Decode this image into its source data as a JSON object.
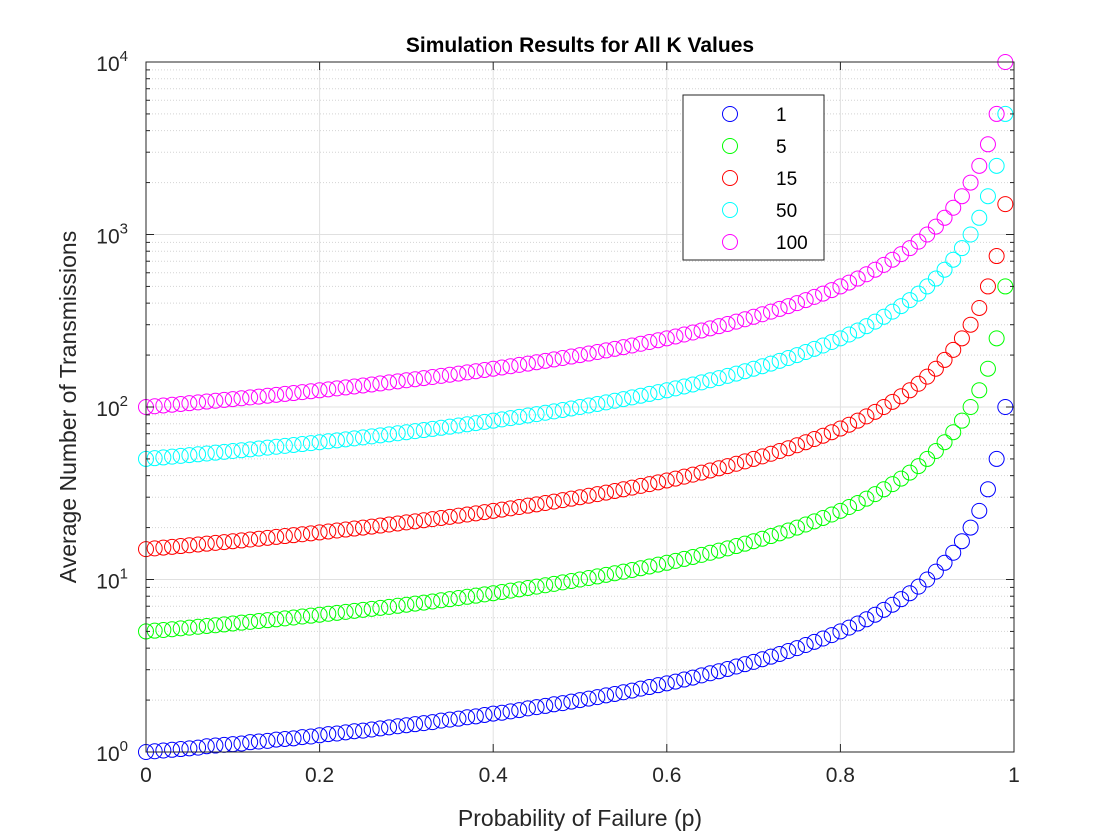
{
  "chart_data": {
    "type": "scatter",
    "title": "Simulation Results for All K Values",
    "xlabel": "Probability of Failure (p)",
    "ylabel": "Average Number of Transmissions",
    "xlim": [
      0,
      1
    ],
    "ylim": [
      1,
      10000
    ],
    "yscale": "log",
    "grid": true,
    "minor_grid": true,
    "legend_position": "top-right",
    "x_ticks": [
      "0",
      "0.2",
      "0.4",
      "0.6",
      "0.8",
      "1"
    ],
    "y_ticks": [
      {
        "base": "10",
        "exp": "0"
      },
      {
        "base": "10",
        "exp": "1"
      },
      {
        "base": "10",
        "exp": "2"
      },
      {
        "base": "10",
        "exp": "3"
      },
      {
        "base": "10",
        "exp": "4"
      }
    ],
    "x": [
      0,
      0.01,
      0.02,
      0.03,
      0.04,
      0.05,
      0.06,
      0.07,
      0.08,
      0.09,
      0.1,
      0.11,
      0.12,
      0.13,
      0.14,
      0.15,
      0.16,
      0.17,
      0.18,
      0.19,
      0.2,
      0.21,
      0.22,
      0.23,
      0.24,
      0.25,
      0.26,
      0.27,
      0.28,
      0.29,
      0.3,
      0.31,
      0.32,
      0.33,
      0.34,
      0.35,
      0.36,
      0.37,
      0.38,
      0.39,
      0.4,
      0.41,
      0.42,
      0.43,
      0.44,
      0.45,
      0.46,
      0.47,
      0.48,
      0.49,
      0.5,
      0.51,
      0.52,
      0.53,
      0.54,
      0.55,
      0.56,
      0.57,
      0.58,
      0.59,
      0.6,
      0.61,
      0.62,
      0.63,
      0.64,
      0.65,
      0.66,
      0.67,
      0.68,
      0.69,
      0.7,
      0.71,
      0.72,
      0.73,
      0.74,
      0.75,
      0.76,
      0.77,
      0.78,
      0.79,
      0.8,
      0.81,
      0.82,
      0.83,
      0.84,
      0.85,
      0.86,
      0.87,
      0.88,
      0.89,
      0.9,
      0.91,
      0.92,
      0.93,
      0.94,
      0.95,
      0.96,
      0.97,
      0.98,
      0.99
    ],
    "series": [
      {
        "name": "1",
        "color": "#0000ff",
        "values": [
          1,
          1.01,
          1.02,
          1.03,
          1.04,
          1.05,
          1.06,
          1.08,
          1.09,
          1.1,
          1.11,
          1.12,
          1.14,
          1.15,
          1.16,
          1.18,
          1.19,
          1.2,
          1.22,
          1.23,
          1.25,
          1.27,
          1.28,
          1.3,
          1.32,
          1.33,
          1.35,
          1.37,
          1.39,
          1.41,
          1.43,
          1.45,
          1.47,
          1.49,
          1.52,
          1.54,
          1.56,
          1.59,
          1.61,
          1.64,
          1.67,
          1.69,
          1.72,
          1.75,
          1.79,
          1.82,
          1.85,
          1.89,
          1.92,
          1.96,
          2,
          2.04,
          2.08,
          2.13,
          2.17,
          2.22,
          2.27,
          2.33,
          2.38,
          2.44,
          2.5,
          2.56,
          2.63,
          2.7,
          2.78,
          2.86,
          2.94,
          3.03,
          3.13,
          3.23,
          3.33,
          3.45,
          3.57,
          3.7,
          3.85,
          4,
          4.17,
          4.35,
          4.55,
          4.76,
          5,
          5.26,
          5.56,
          5.88,
          6.25,
          6.67,
          7.14,
          7.69,
          8.33,
          9.09,
          10,
          11.11,
          12.5,
          14.29,
          16.67,
          20,
          25,
          33.33,
          50,
          100
        ]
      },
      {
        "name": "5",
        "color": "#00ff00",
        "values": [
          5,
          5.05,
          5.1,
          5.15,
          5.21,
          5.26,
          5.32,
          5.38,
          5.43,
          5.49,
          5.56,
          5.62,
          5.68,
          5.75,
          5.81,
          5.88,
          5.95,
          6.02,
          6.1,
          6.17,
          6.25,
          6.33,
          6.41,
          6.49,
          6.58,
          6.67,
          6.76,
          6.85,
          6.94,
          7.04,
          7.14,
          7.25,
          7.35,
          7.46,
          7.58,
          7.69,
          7.81,
          7.94,
          8.06,
          8.2,
          8.33,
          8.47,
          8.62,
          8.77,
          8.93,
          9.09,
          9.26,
          9.43,
          9.62,
          9.8,
          10,
          10.2,
          10.42,
          10.64,
          10.87,
          11.11,
          11.36,
          11.63,
          11.9,
          12.2,
          12.5,
          12.82,
          13.16,
          13.51,
          13.89,
          14.29,
          14.71,
          15.15,
          15.63,
          16.13,
          16.67,
          17.24,
          17.86,
          18.52,
          19.23,
          20,
          20.83,
          21.74,
          22.73,
          23.81,
          25,
          26.32,
          27.78,
          29.41,
          31.25,
          33.33,
          35.71,
          38.46,
          41.67,
          45.45,
          50,
          55.56,
          62.5,
          71.43,
          83.33,
          100,
          125,
          166.67,
          250,
          500
        ]
      },
      {
        "name": "15",
        "color": "#ff0000",
        "values": [
          15,
          15.15,
          15.31,
          15.46,
          15.63,
          15.79,
          15.96,
          16.13,
          16.3,
          16.48,
          16.67,
          16.85,
          17.05,
          17.24,
          17.44,
          17.65,
          17.86,
          18.07,
          18.29,
          18.52,
          18.75,
          18.99,
          19.23,
          19.48,
          19.74,
          20,
          20.27,
          20.55,
          20.83,
          21.13,
          21.43,
          21.74,
          22.06,
          22.39,
          22.73,
          23.08,
          23.44,
          23.81,
          24.19,
          24.59,
          25,
          25.42,
          25.86,
          26.32,
          26.79,
          27.27,
          27.78,
          28.3,
          28.85,
          29.41,
          30,
          30.61,
          31.25,
          31.91,
          32.61,
          33.33,
          34.09,
          34.88,
          35.71,
          36.59,
          37.5,
          38.46,
          39.47,
          40.54,
          41.67,
          42.86,
          44.12,
          45.45,
          46.88,
          48.39,
          50,
          51.72,
          53.57,
          55.56,
          57.69,
          60,
          62.5,
          65.22,
          68.18,
          71.43,
          75,
          78.95,
          83.33,
          88.24,
          93.75,
          100,
          107.14,
          115.38,
          125,
          136.36,
          150,
          166.67,
          187.5,
          214.29,
          250,
          300,
          375,
          500,
          750,
          1500
        ]
      },
      {
        "name": "50",
        "color": "#00ffff",
        "values": [
          50,
          50.51,
          51.02,
          51.55,
          52.08,
          52.63,
          53.19,
          53.76,
          54.35,
          54.95,
          55.56,
          56.18,
          56.82,
          57.47,
          58.14,
          58.82,
          59.52,
          60.24,
          60.98,
          61.73,
          62.5,
          63.29,
          64.1,
          64.94,
          65.79,
          66.67,
          67.57,
          68.49,
          69.44,
          70.42,
          71.43,
          72.46,
          73.53,
          74.63,
          75.76,
          76.92,
          78.13,
          79.37,
          80.65,
          81.97,
          83.33,
          84.75,
          86.21,
          87.72,
          89.29,
          90.91,
          92.59,
          94.34,
          96.15,
          98.04,
          100,
          102.04,
          104.17,
          106.38,
          108.7,
          111.11,
          113.64,
          116.28,
          119.05,
          121.95,
          125,
          128.21,
          131.58,
          135.14,
          138.89,
          142.86,
          147.06,
          151.52,
          156.25,
          161.29,
          166.67,
          172.41,
          178.57,
          185.19,
          192.31,
          200,
          208.33,
          217.39,
          227.27,
          238.1,
          250,
          263.16,
          277.78,
          294.12,
          312.5,
          333.33,
          357.14,
          384.62,
          416.67,
          454.55,
          500,
          555.56,
          625,
          714.29,
          833.33,
          1000,
          1250,
          1666.67,
          2500,
          5000
        ]
      },
      {
        "name": "100",
        "color": "#ff00ff",
        "values": [
          100,
          101.01,
          102.04,
          103.09,
          104.17,
          105.26,
          106.38,
          107.53,
          108.7,
          109.89,
          111.11,
          112.36,
          113.64,
          114.94,
          116.28,
          117.65,
          119.05,
          120.48,
          121.95,
          123.46,
          125,
          126.58,
          128.21,
          129.87,
          131.58,
          133.33,
          135.14,
          136.99,
          138.89,
          140.85,
          142.86,
          144.93,
          147.06,
          149.25,
          151.52,
          153.85,
          156.25,
          158.73,
          161.29,
          163.93,
          166.67,
          169.49,
          172.41,
          175.44,
          178.57,
          181.82,
          185.19,
          188.68,
          192.31,
          196.08,
          200,
          204.08,
          208.33,
          212.77,
          217.39,
          222.22,
          227.27,
          232.56,
          238.1,
          243.9,
          250,
          256.41,
          263.16,
          270.27,
          277.78,
          285.71,
          294.12,
          303.03,
          312.5,
          322.58,
          333.33,
          344.83,
          357.14,
          370.37,
          384.62,
          400,
          416.67,
          434.78,
          454.55,
          476.19,
          500,
          526.32,
          555.56,
          588.24,
          625,
          666.67,
          714.29,
          769.23,
          833.33,
          909.09,
          1000,
          1111.11,
          1250,
          1428.57,
          1666.67,
          2000,
          2500,
          3333.33,
          5000,
          10000
        ]
      }
    ]
  }
}
